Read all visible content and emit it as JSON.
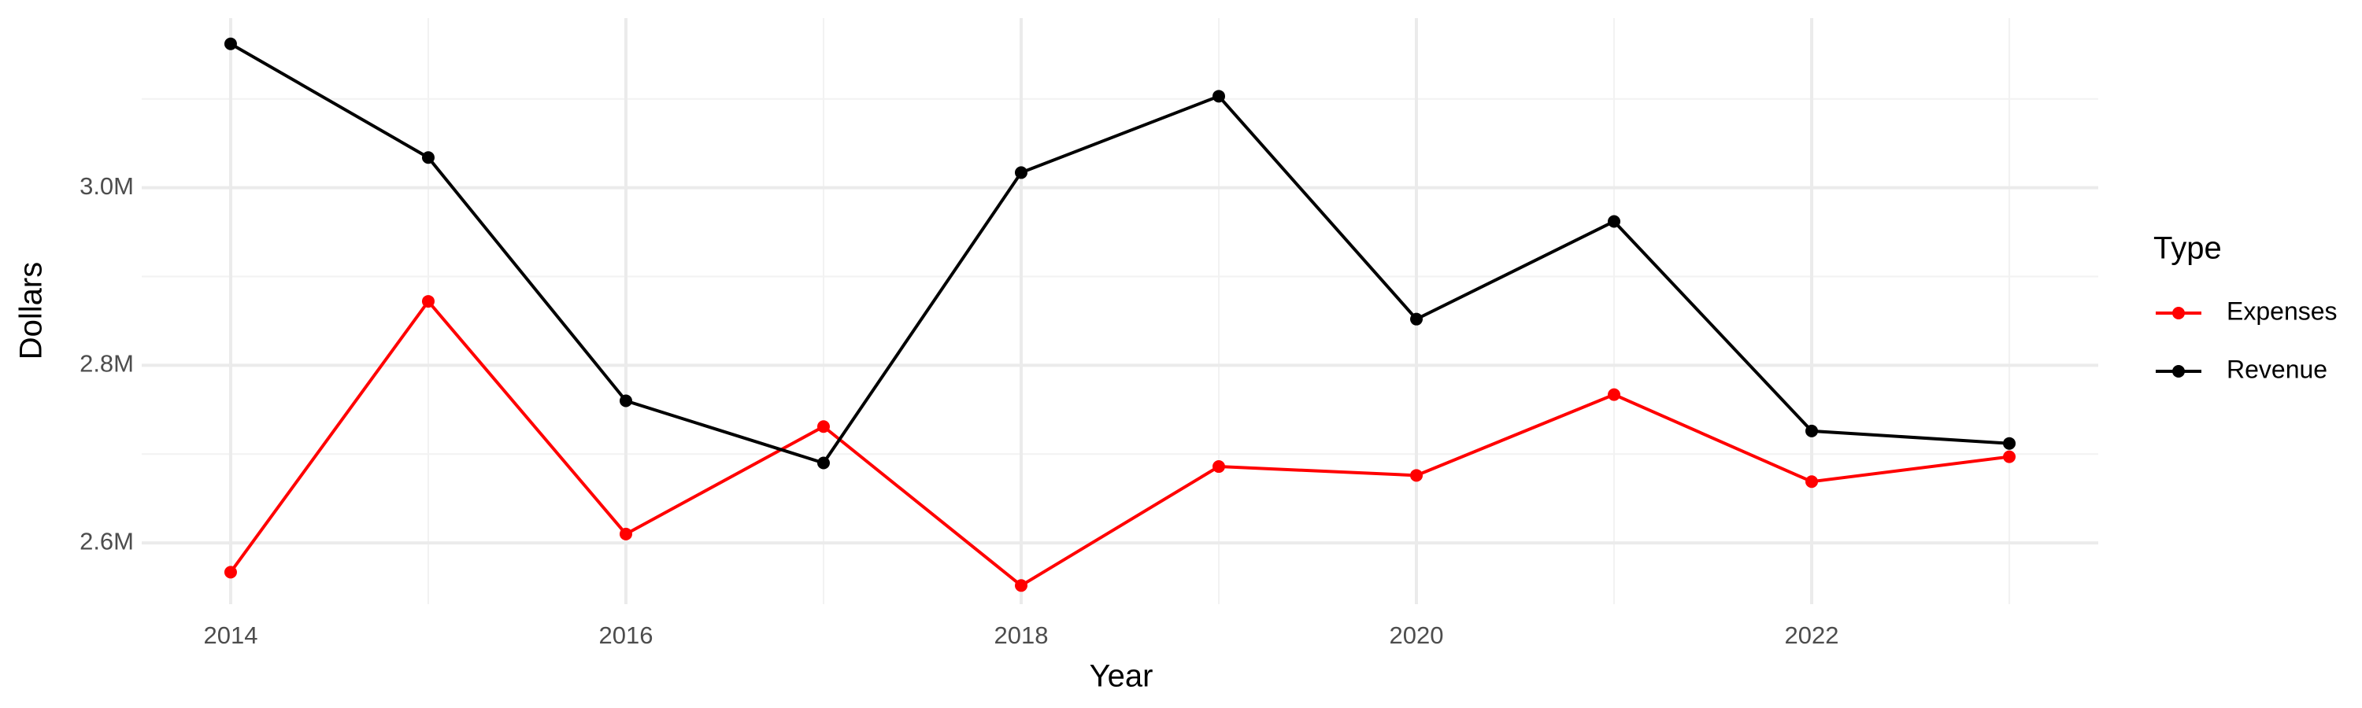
{
  "chart_data": {
    "type": "line",
    "x_label": "Year",
    "y_label": "Dollars",
    "legend_title": "Type",
    "x": [
      2014,
      2015,
      2016,
      2017,
      2018,
      2019,
      2020,
      2021,
      2022,
      2023
    ],
    "series": [
      {
        "name": "Expenses",
        "color": "#ff0000",
        "values": [
          2567000,
          2872000,
          2610000,
          2731000,
          2552000,
          2686000,
          2676000,
          2767000,
          2669000,
          2697000
        ]
      },
      {
        "name": "Revenue",
        "color": "#000000",
        "values": [
          3162000,
          3034000,
          2760000,
          2690000,
          3017000,
          3103000,
          2852000,
          2962000,
          2726000,
          2712000
        ]
      }
    ],
    "xlim": [
      2013.55,
      2023.45
    ],
    "xticks": [
      2014,
      2016,
      2018,
      2020,
      2022
    ],
    "ylim": [
      2531000,
      3191000
    ],
    "yticks": [
      {
        "value": 2600000,
        "label": "2.6M"
      },
      {
        "value": 2800000,
        "label": "2.8M"
      },
      {
        "value": 3000000,
        "label": "3.0M"
      }
    ],
    "grid": true,
    "minor_grid": true,
    "legend": "right"
  }
}
